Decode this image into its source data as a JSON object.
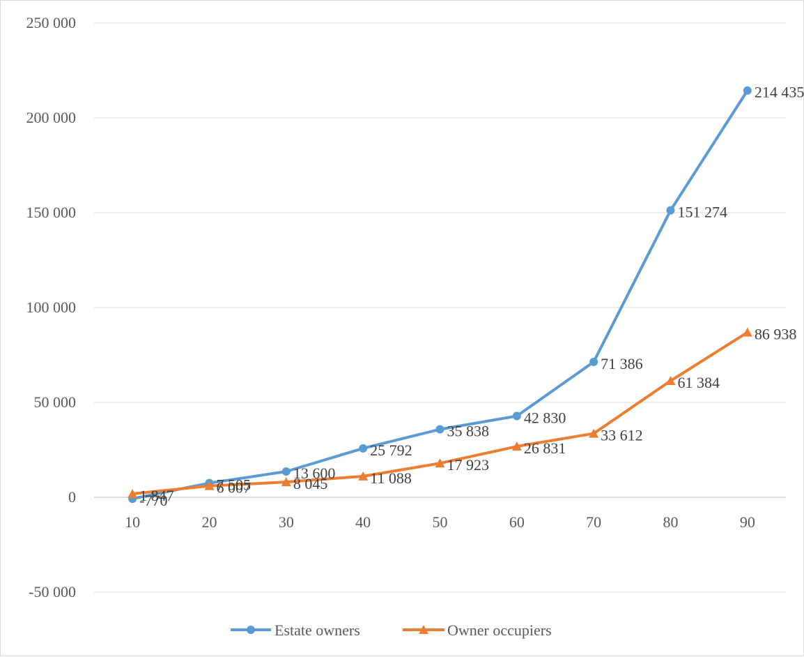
{
  "chart_data": {
    "type": "line",
    "title": "",
    "xlabel": "",
    "ylabel": "",
    "categories": [
      "10",
      "20",
      "30",
      "40",
      "50",
      "60",
      "70",
      "80",
      "90"
    ],
    "ylim": [
      -50000,
      250000
    ],
    "y_ticks": [
      250000,
      200000,
      150000,
      100000,
      50000,
      0,
      -50000
    ],
    "y_tick_labels": [
      "250 000",
      "200 000",
      "150 000",
      "100 000",
      "50 000",
      "0",
      "-50 000"
    ],
    "grid": true,
    "legend_position": "bottom",
    "series": [
      {
        "name": "Estate owners",
        "color": "#5b9bd5",
        "marker": "circle",
        "values": [
          -770,
          7505,
          13600,
          25792,
          35838,
          42830,
          71386,
          151274,
          214435
        ],
        "labels": [
          "-770",
          "7 505",
          "13 600",
          "25 792",
          "35 838",
          "42 830",
          "71 386",
          "151 274",
          "214 435"
        ]
      },
      {
        "name": "Owner occupiers",
        "color": "#ed7d31",
        "marker": "triangle",
        "values": [
          1847,
          6007,
          8045,
          11088,
          17923,
          26831,
          33612,
          61384,
          86938
        ],
        "labels": [
          "1 847",
          "6 007",
          "8 045",
          "11 088",
          "17 923",
          "26 831",
          "33 612",
          "61 384",
          "86 938"
        ]
      }
    ]
  }
}
